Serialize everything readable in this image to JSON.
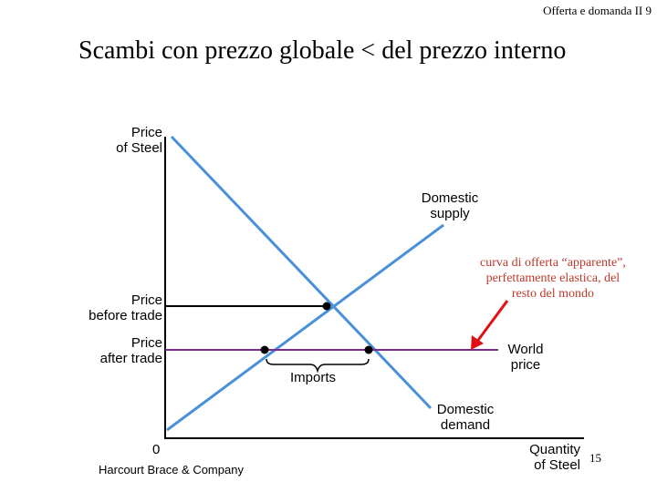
{
  "header": {
    "slide_label": "Offerta e domanda II 9"
  },
  "title": "Scambi con prezzo globale < del prezzo interno",
  "axes": {
    "y_label_line1": "Price",
    "y_label_line2": "of Steel",
    "x_label_line1": "Quantity",
    "x_label_line2": "of Steel",
    "origin": "0"
  },
  "labels": {
    "domestic_supply_1": "Domestic",
    "domestic_supply_2": "supply",
    "domestic_demand_1": "Domestic",
    "domestic_demand_2": "demand",
    "price_before_1": "Price",
    "price_before_2": "before trade",
    "price_after_1": "Price",
    "price_after_2": "after trade",
    "world_price_1": "World",
    "world_price_2": "price",
    "imports": "Imports"
  },
  "annotation": {
    "line1": "curva di offerta “apparente”,",
    "line2": "perfettamente elastica, del",
    "line3": "resto del mondo"
  },
  "footer": {
    "credit": "Harcourt Brace & Company",
    "page_number": "15"
  },
  "colors": {
    "curves": "#4a90d9",
    "world_price_line": "#7b2b8f",
    "annotation": "#c0392b",
    "arrow": "#e01010"
  }
}
